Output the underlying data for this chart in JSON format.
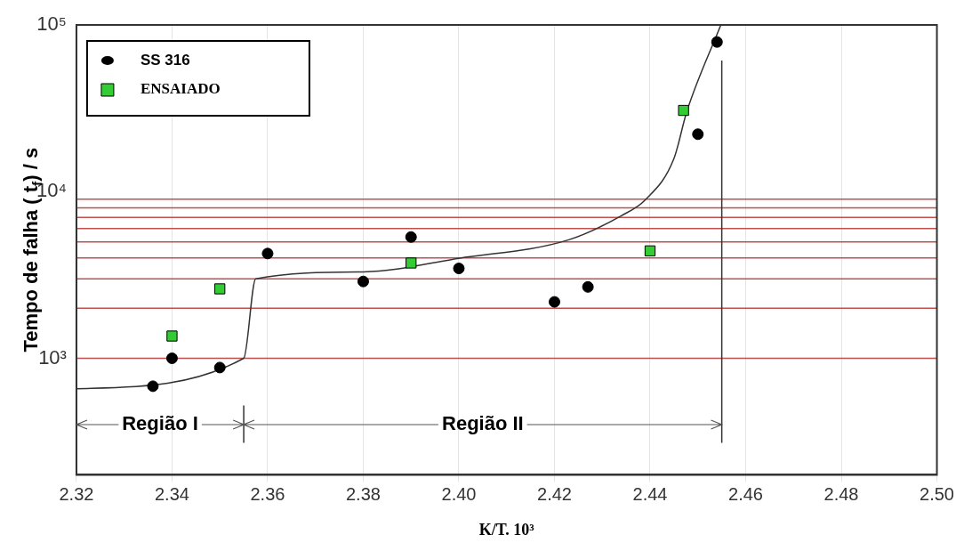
{
  "chart_data": {
    "type": "scatter",
    "xlabel": "K/T. 10³",
    "ylabel": "Tempo de falha ( t$_{f}$) / s",
    "xlim": [
      2.32,
      2.5
    ],
    "xticks": [
      2.32,
      2.34,
      2.36,
      2.38,
      {
        "value": 2.4,
        "label": "2.40"
      },
      2.42,
      2.44,
      2.46,
      2.48,
      {
        "value": 2.5,
        "label": "2.50"
      }
    ],
    "ylim": [
      200,
      100000
    ],
    "yticks": [
      {
        "value": 1000,
        "label": "10³"
      },
      {
        "value": 10000,
        "label": "10⁴"
      },
      {
        "value": 100000,
        "label": "10⁵"
      }
    ],
    "log": "y",
    "grid": "x",
    "legend": "top left",
    "series": [
      {
        "name": "SS 316",
        "color": "#000000",
        "marker": "circle",
        "x": [
          2.336,
          2.34,
          2.35,
          2.36,
          2.38,
          2.39,
          2.4,
          2.42,
          2.427,
          2.45,
          2.454
        ],
        "values": [
          680,
          1000,
          880,
          4250,
          2890,
          5340,
          3460,
          2180,
          2680,
          22100,
          79000
        ]
      },
      {
        "name": "ENSAIADO",
        "color": "#33cc33",
        "marker": "square",
        "x": [
          2.34,
          2.35,
          2.39,
          2.44,
          2.447
        ],
        "values": [
          1360,
          2610,
          3730,
          4410,
          30700
        ]
      },
      {
        "type": "line",
        "color": "#333333",
        "marker": "none",
        "x": [
          2.32,
          2.355,
          2.3575,
          2.38,
          2.4,
          2.423,
          2.434,
          2.439,
          2.445,
          2.4477,
          2.4548
        ],
        "values": [
          656,
          1000,
          3000,
          3300,
          3980,
          5140,
          7170,
          8930,
          15800,
          30300,
          100000
        ]
      }
    ],
    "ref_lines": [
      {
        "axis": "y",
        "value": 1000,
        "color": "#c0504d"
      },
      {
        "axis": "y",
        "value": 2000,
        "color": "#c0504d"
      },
      {
        "axis": "y",
        "value": 3000,
        "color": "#c0504d"
      },
      {
        "axis": "y",
        "value": 4000,
        "color": "#c0504d"
      },
      {
        "axis": "y",
        "value": 5000,
        "color": "#c0504d"
      },
      {
        "axis": "y",
        "value": 6000,
        "color": "#c0504d"
      },
      {
        "axis": "y",
        "value": 7000,
        "color": "#c0504d"
      },
      {
        "axis": "y",
        "value": 8000,
        "color": "#c0504d"
      },
      {
        "axis": "y",
        "value": 9000,
        "color": "#c0504d"
      },
      {
        "axis": "x",
        "value": 2.355,
        "color": "#333333"
      },
      {
        "axis": "x",
        "value": 2.455,
        "color": "#333333"
      }
    ],
    "annotations": [
      {
        "text": "Região I",
        "x": 2.355,
        "y": 400
      },
      {
        "text": "Região II",
        "x": 2.455,
        "y": 400
      }
    ]
  }
}
